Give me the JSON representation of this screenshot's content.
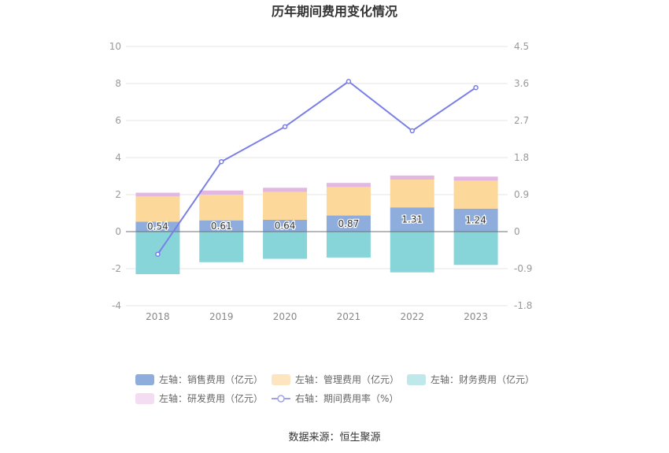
{
  "chart_data": {
    "type": "bar",
    "title": "历年期间费用变化情况",
    "categories": [
      "2018",
      "2019",
      "2020",
      "2021",
      "2022",
      "2023"
    ],
    "left_axis": {
      "min": -4,
      "max": 10,
      "ticks": [
        "-4",
        "-2",
        "0",
        "2",
        "4",
        "6",
        "8",
        "10"
      ]
    },
    "right_axis": {
      "min": -1.8,
      "max": 4.5,
      "ticks": [
        "-1.8",
        "-0.9",
        "0",
        "0.9",
        "1.8",
        "2.7",
        "3.6",
        "4.5"
      ]
    },
    "series": [
      {
        "name": "左轴：销售费用（亿元）",
        "axis": "left",
        "type": "bar",
        "stacked": true,
        "color": "#8eacdc",
        "values": [
          0.54,
          0.61,
          0.64,
          0.87,
          1.31,
          1.24
        ],
        "labels": [
          "0.54",
          "0.61",
          "0.64",
          "0.87",
          "1.31",
          "1.24"
        ]
      },
      {
        "name": "左轴：管理费用（亿元）",
        "axis": "left",
        "type": "bar",
        "stacked": true,
        "color": "#fdd89b",
        "values": [
          1.36,
          1.39,
          1.51,
          1.54,
          1.5,
          1.51
        ]
      },
      {
        "name": "左轴：财务费用（亿元）",
        "axis": "left",
        "type": "bar",
        "stacked": true,
        "color": "#88d5d9",
        "values": [
          -2.3,
          -1.65,
          -1.47,
          -1.4,
          -2.2,
          -1.8
        ]
      },
      {
        "name": "左轴：研发费用（亿元）",
        "axis": "left",
        "type": "bar",
        "stacked": true,
        "color": "#e2b8e1",
        "values": [
          0.2,
          0.22,
          0.22,
          0.22,
          0.22,
          0.22
        ]
      },
      {
        "name": "右轴：期间费用率（%）",
        "axis": "right",
        "type": "line",
        "color": "#7a7fe8",
        "values": [
          -0.55,
          1.7,
          2.55,
          3.65,
          2.45,
          3.5
        ]
      }
    ],
    "legend_colors": [
      "#8eacdc",
      "#fde6bf",
      "#bfe8ea",
      "#f4dcf2",
      "#9ea2ee"
    ],
    "legend_position": "bottom",
    "grid": true
  },
  "source": "数据来源：恒生聚源"
}
